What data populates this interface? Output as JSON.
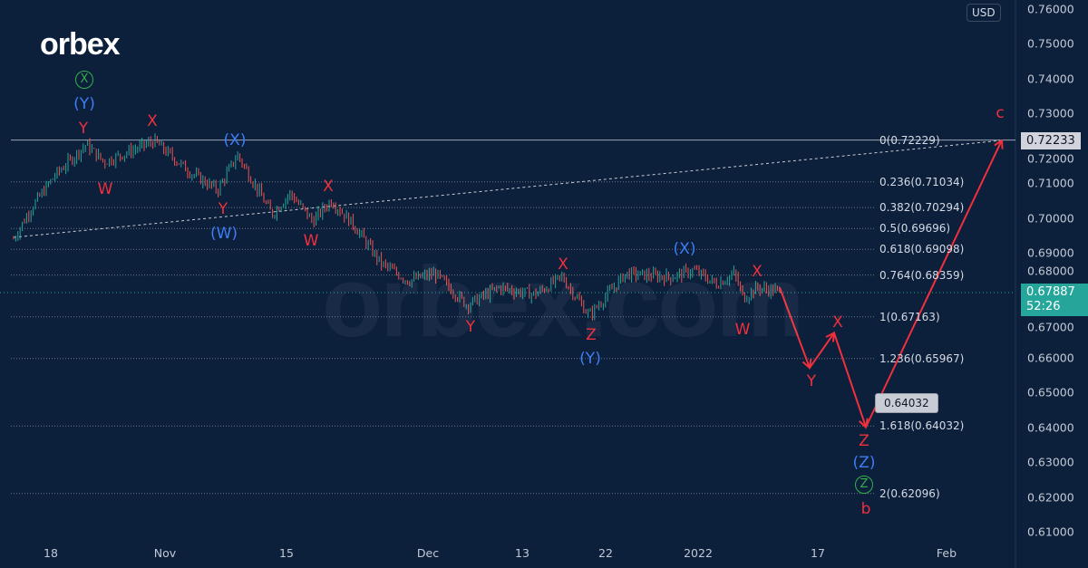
{
  "brand": {
    "logo": "orbex",
    "watermark": "orbex.com"
  },
  "currency": "USD",
  "y_axis": [
    "0.76000",
    "0.75000",
    "0.74000",
    "0.73000",
    "0.72000",
    "0.71000",
    "0.70000",
    "0.69000",
    "0.68000",
    "0.67000",
    "0.66000",
    "0.65000",
    "0.64000",
    "0.63000",
    "0.62000",
    "0.61000"
  ],
  "x_axis": [
    "18",
    "Nov",
    "15",
    "Dec",
    "13",
    "22",
    "2022",
    "17",
    "Feb"
  ],
  "fib_levels": [
    "0(0.72229)",
    "0.236(0.71034)",
    "0.382(0.70294)",
    "0.5(0.69696)",
    "0.618(0.69098)",
    "0.764(0.68359)",
    "1(0.67163)",
    "1.236(0.65967)",
    "1.618(0.64032)",
    "2(0.62096)"
  ],
  "price_tags": {
    "level": "0.72233",
    "current": "0.67887",
    "countdown": "52:26",
    "target": "0.64032"
  },
  "waves": [
    {
      "text": "X",
      "color": "green"
    },
    {
      "text": "(Y)",
      "color": "blue"
    },
    {
      "text": "Y",
      "color": "red"
    },
    {
      "text": "X",
      "color": "red"
    },
    {
      "text": "W",
      "color": "red"
    },
    {
      "text": "(X)",
      "color": "blue"
    },
    {
      "text": "Y",
      "color": "red"
    },
    {
      "text": "(W)",
      "color": "blue"
    },
    {
      "text": "X",
      "color": "red"
    },
    {
      "text": "W",
      "color": "red"
    },
    {
      "text": "Y",
      "color": "red"
    },
    {
      "text": "X",
      "color": "red"
    },
    {
      "text": "Z",
      "color": "red"
    },
    {
      "text": "(Y)",
      "color": "blue"
    },
    {
      "text": "(X)",
      "color": "blue"
    },
    {
      "text": "X",
      "color": "red"
    },
    {
      "text": "W",
      "color": "red"
    },
    {
      "text": "X",
      "color": "red"
    },
    {
      "text": "Y",
      "color": "red"
    },
    {
      "text": "Z",
      "color": "red"
    },
    {
      "text": "(Z)",
      "color": "blue"
    },
    {
      "text": "Z",
      "color": "green"
    },
    {
      "text": "b",
      "color": "red"
    },
    {
      "text": "c",
      "color": "red"
    }
  ],
  "colors": {
    "background": "#0c1f3b",
    "up": "#26a69a",
    "down": "#ef5350",
    "projection": "#f0303c",
    "wave_blue": "#3d7ef5",
    "wave_green": "#35b04a"
  }
}
